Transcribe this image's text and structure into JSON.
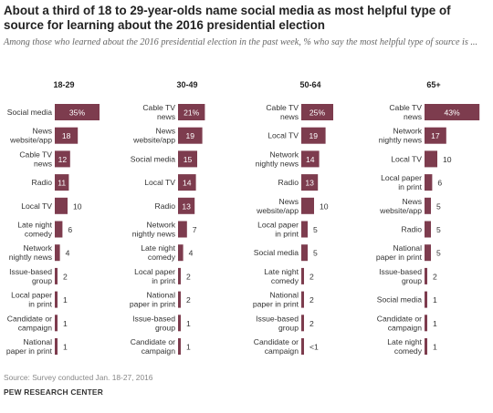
{
  "title": "About a third of 18 to 29-year-olds name social media as most helpful type of source for learning about the 2016 presidential election",
  "subtitle": "Among those who learned about the 2016 presidential election in the past week, % who say the most helpful type of source is ...",
  "source": "Source: Survey conducted Jan. 18-27, 2016",
  "footer": "PEW RESEARCH CENTER",
  "colors": {
    "bar": "#7d3c4e",
    "label_inside": "#ffffff",
    "label_outside": "#333333"
  },
  "chart_data": [
    {
      "type": "bar",
      "title": "18-29",
      "categories": [
        "Social media",
        "News website/app",
        "Cable TV news",
        "Radio",
        "Local TV",
        "Late night comedy",
        "Network nightly news",
        "Issue-based group",
        "Local paper in print",
        "Candidate or campaign",
        "National paper in print"
      ],
      "category_lines": [
        [
          "Social media"
        ],
        [
          "News",
          "website/app"
        ],
        [
          "Cable TV",
          "news"
        ],
        [
          "Radio"
        ],
        [
          "Local TV"
        ],
        [
          "Late night",
          "comedy"
        ],
        [
          "Network",
          "nightly news"
        ],
        [
          "Issue-based",
          "group"
        ],
        [
          "Local paper",
          "in print"
        ],
        [
          "Candidate or",
          "campaign"
        ],
        [
          "National",
          "paper in print"
        ]
      ],
      "values": [
        35,
        18,
        12,
        11,
        10,
        6,
        4,
        2,
        1,
        1,
        1
      ],
      "labels": [
        "35%",
        "18",
        "12",
        "11",
        "10",
        "6",
        "4",
        "2",
        "1",
        "1",
        "1"
      ]
    },
    {
      "type": "bar",
      "title": "30-49",
      "categories": [
        "Cable TV news",
        "News website/app",
        "Social media",
        "Local TV",
        "Radio",
        "Network nightly news",
        "Late night comedy",
        "Local paper in print",
        "National paper in print",
        "Issue-based group",
        "Candidate or campaign"
      ],
      "category_lines": [
        [
          "Cable TV",
          "news"
        ],
        [
          "News",
          "website/app"
        ],
        [
          "Social media"
        ],
        [
          "Local TV"
        ],
        [
          "Radio"
        ],
        [
          "Network",
          "nightly news"
        ],
        [
          "Late night",
          "comedy"
        ],
        [
          "Local paper",
          "in print"
        ],
        [
          "National",
          "paper in print"
        ],
        [
          "Issue-based",
          "group"
        ],
        [
          "Candidate or",
          "campaign"
        ]
      ],
      "values": [
        21,
        19,
        15,
        14,
        13,
        7,
        4,
        2,
        2,
        1,
        1
      ],
      "labels": [
        "21%",
        "19",
        "15",
        "14",
        "13",
        "7",
        "4",
        "2",
        "2",
        "1",
        "1"
      ]
    },
    {
      "type": "bar",
      "title": "50-64",
      "categories": [
        "Cable TV news",
        "Local TV",
        "Network nightly news",
        "Radio",
        "News website/app",
        "Local paper in print",
        "Social media",
        "Late night comedy",
        "National paper in print",
        "Issue-based group",
        "Candidate or campaign"
      ],
      "category_lines": [
        [
          "Cable TV",
          "news"
        ],
        [
          "Local TV"
        ],
        [
          "Network",
          "nightly news"
        ],
        [
          "Radio"
        ],
        [
          "News",
          "website/app"
        ],
        [
          "Local paper",
          "in print"
        ],
        [
          "Social media"
        ],
        [
          "Late night",
          "comedy"
        ],
        [
          "National",
          "paper in print"
        ],
        [
          "Issue-based",
          "group"
        ],
        [
          "Candidate or",
          "campaign"
        ]
      ],
      "values": [
        25,
        19,
        14,
        13,
        10,
        5,
        5,
        2,
        2,
        2,
        0.3
      ],
      "labels": [
        "25%",
        "19",
        "14",
        "13",
        "10",
        "5",
        "5",
        "2",
        "2",
        "2",
        "<1"
      ]
    },
    {
      "type": "bar",
      "title": "65+",
      "categories": [
        "Cable TV news",
        "Network nightly news",
        "Local TV",
        "Local paper in print",
        "News website/app",
        "Radio",
        "National paper in print",
        "Issue-based group",
        "Social media",
        "Candidate or campaign",
        "Late night comedy"
      ],
      "category_lines": [
        [
          "Cable TV",
          "news"
        ],
        [
          "Network",
          "nightly news"
        ],
        [
          "Local TV"
        ],
        [
          "Local paper",
          "in print"
        ],
        [
          "News",
          "website/app"
        ],
        [
          "Radio"
        ],
        [
          "National",
          "paper in print"
        ],
        [
          "Issue-based",
          "group"
        ],
        [
          "Social media"
        ],
        [
          "Candidate or",
          "campaign"
        ],
        [
          "Late night",
          "comedy"
        ]
      ],
      "values": [
        43,
        17,
        10,
        6,
        5,
        5,
        5,
        2,
        1,
        1,
        1
      ],
      "labels": [
        "43%",
        "17",
        "10",
        "6",
        "5",
        "5",
        "5",
        "2",
        "1",
        "1",
        "1"
      ]
    }
  ]
}
